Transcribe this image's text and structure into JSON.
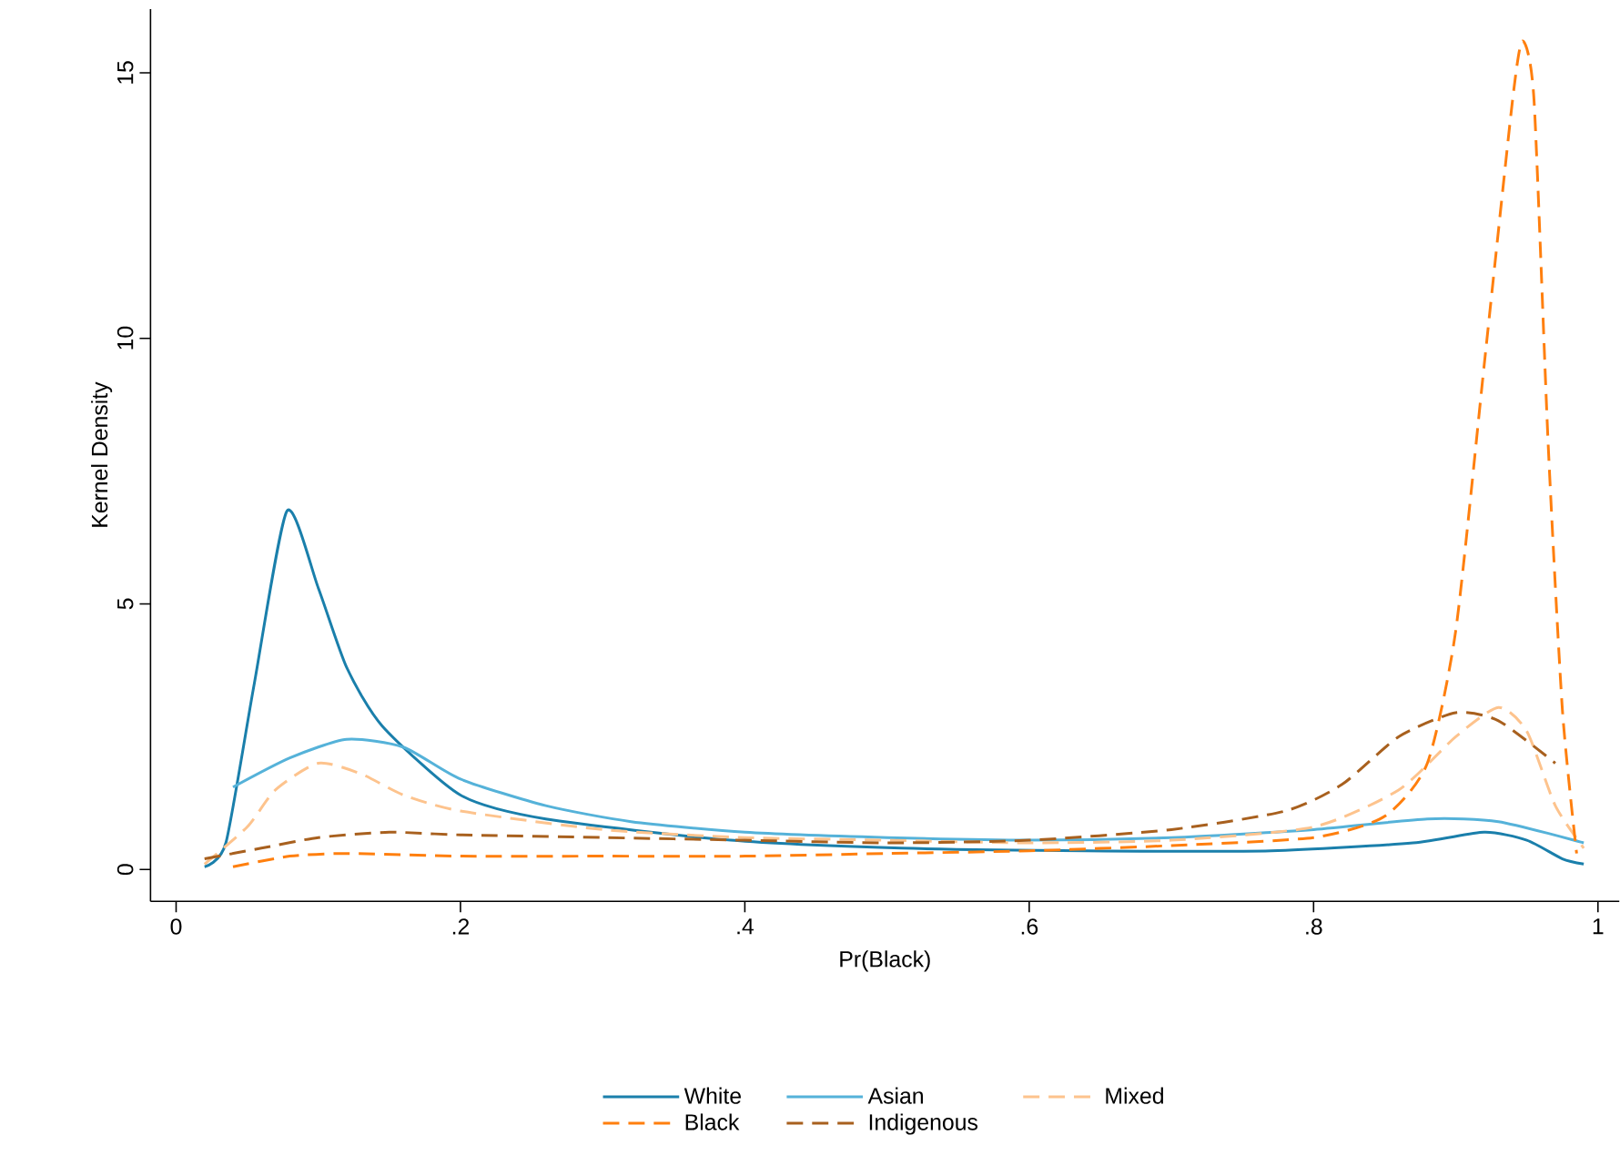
{
  "chart_data": {
    "type": "line",
    "xlabel": "Pr(Black)",
    "ylabel": "Kernel Density",
    "xlim": [
      -0.018,
      1.015
    ],
    "ylim": [
      -0.6,
      16.2
    ],
    "xticks": [
      0,
      {
        "value": 0.2,
        "label": ".2"
      },
      {
        "value": 0.4,
        "label": ".4"
      },
      {
        "value": 0.6,
        "label": ".6"
      },
      {
        "value": 0.8,
        "label": ".8"
      },
      1
    ],
    "yticks": [
      0,
      5,
      10,
      15
    ],
    "grid": false,
    "legend": "bottom",
    "marker": "none",
    "series": [
      {
        "name": "White",
        "color": "#1a7fab",
        "line_style": "solid",
        "x": [
          0.02,
          0.035,
          0.055,
          0.078,
          0.1,
          0.12,
          0.145,
          0.2,
          0.26,
          0.39,
          0.51,
          0.64,
          0.77,
          0.87,
          0.92,
          0.95,
          0.975,
          0.99
        ],
        "values": [
          0.05,
          0.5,
          3.5,
          6.75,
          5.3,
          3.8,
          2.7,
          1.4,
          0.95,
          0.55,
          0.4,
          0.35,
          0.35,
          0.5,
          0.7,
          0.55,
          0.2,
          0.1
        ]
      },
      {
        "name": "Asian",
        "color": "#55b2d9",
        "line_style": "solid",
        "x": [
          0.04,
          0.08,
          0.12,
          0.16,
          0.2,
          0.26,
          0.32,
          0.4,
          0.5,
          0.6,
          0.7,
          0.8,
          0.88,
          0.93,
          0.99
        ],
        "values": [
          1.55,
          2.1,
          2.45,
          2.3,
          1.7,
          1.2,
          0.9,
          0.7,
          0.6,
          0.55,
          0.6,
          0.75,
          0.95,
          0.9,
          0.5
        ]
      },
      {
        "name": "Mixed",
        "color": "#fdc38d",
        "line_style": "dashed",
        "x": [
          0.02,
          0.05,
          0.07,
          0.1,
          0.13,
          0.16,
          0.2,
          0.3,
          0.4,
          0.5,
          0.6,
          0.7,
          0.8,
          0.86,
          0.9,
          0.93,
          0.95,
          0.97,
          0.99
        ],
        "values": [
          0.1,
          0.8,
          1.5,
          2.0,
          1.8,
          1.4,
          1.1,
          0.75,
          0.6,
          0.55,
          0.5,
          0.55,
          0.8,
          1.5,
          2.5,
          3.05,
          2.6,
          1.2,
          0.4
        ]
      },
      {
        "name": "Black",
        "color": "#ff7f0e",
        "line_style": "dashed",
        "x": [
          0.04,
          0.08,
          0.12,
          0.2,
          0.3,
          0.4,
          0.5,
          0.6,
          0.7,
          0.8,
          0.85,
          0.88,
          0.9,
          0.92,
          0.94,
          0.947,
          0.955,
          0.965,
          0.975,
          0.985
        ],
        "values": [
          0.05,
          0.25,
          0.3,
          0.25,
          0.25,
          0.25,
          0.3,
          0.35,
          0.45,
          0.6,
          1.0,
          2.0,
          4.5,
          9.5,
          14.5,
          15.6,
          14.5,
          8,
          3,
          0.3
        ]
      },
      {
        "name": "Indigenous",
        "color": "#a8601e",
        "line_style": "dashed",
        "x": [
          0.02,
          0.06,
          0.1,
          0.15,
          0.2,
          0.3,
          0.4,
          0.5,
          0.6,
          0.7,
          0.78,
          0.82,
          0.86,
          0.9,
          0.93,
          0.97
        ],
        "values": [
          0.2,
          0.4,
          0.6,
          0.7,
          0.65,
          0.6,
          0.55,
          0.5,
          0.55,
          0.75,
          1.1,
          1.6,
          2.5,
          2.95,
          2.8,
          2.0
        ]
      }
    ]
  }
}
